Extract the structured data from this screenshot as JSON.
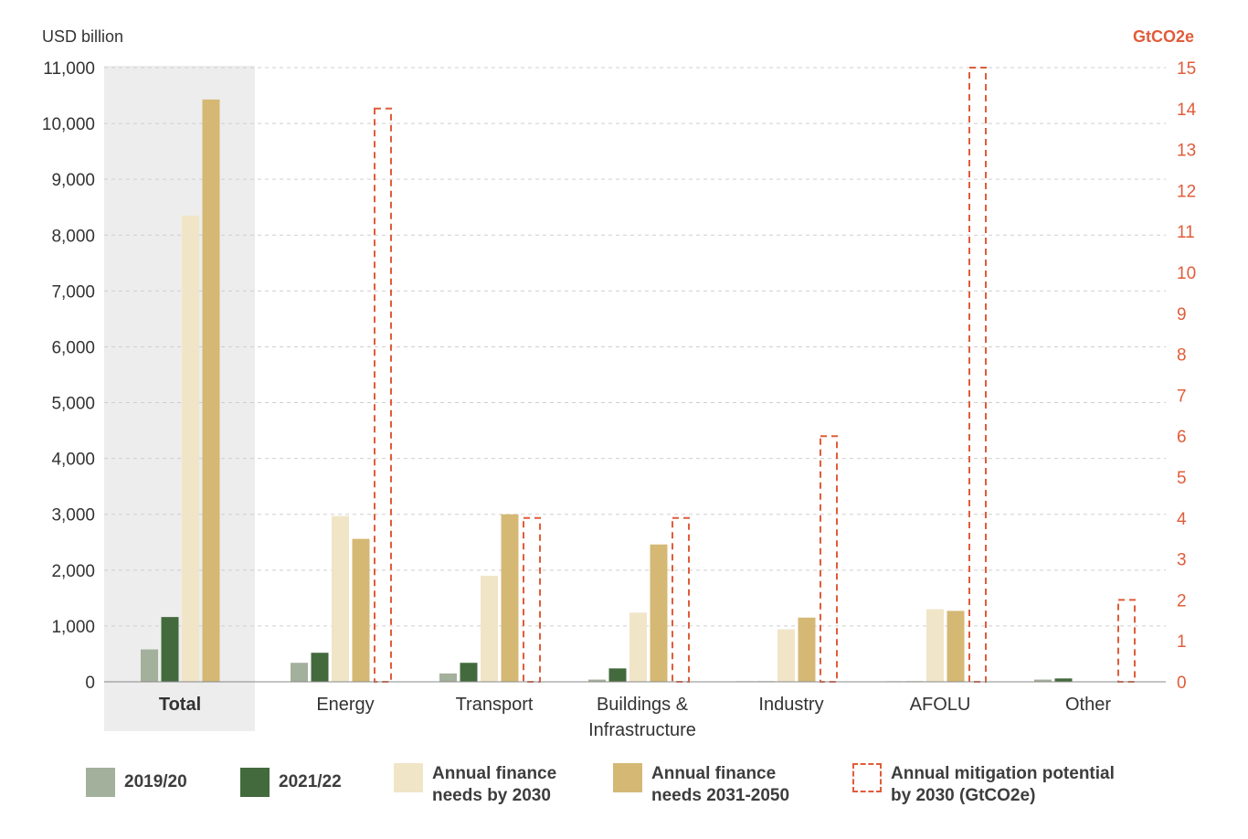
{
  "chart_data": {
    "type": "bar",
    "y_axis_left": {
      "label": "USD billion",
      "range": [
        0,
        11000
      ],
      "ticks": [
        "0",
        "1,000",
        "2,000",
        "3,000",
        "4,000",
        "5,000",
        "6,000",
        "7,000",
        "8,000",
        "9,000",
        "10,000",
        "11,000"
      ]
    },
    "y_axis_right": {
      "label": "GtCO2e",
      "range": [
        0,
        15
      ],
      "ticks": [
        "0",
        "1",
        "2",
        "3",
        "4",
        "5",
        "6",
        "7",
        "8",
        "9",
        "10",
        "11",
        "12",
        "13",
        "14",
        "15"
      ]
    },
    "grid": "horizontal-dashed",
    "categories": [
      "Total",
      "Energy",
      "Transport",
      "Buildings &\nInfrastructure",
      "Industry",
      "AFOLU",
      "Other"
    ],
    "highlighted_category": "Total",
    "series": [
      {
        "name": "2019/20",
        "axis": "left",
        "values": [
          580,
          340,
          150,
          40,
          10,
          10,
          40
        ]
      },
      {
        "name": "2021/22",
        "axis": "left",
        "values": [
          1160,
          520,
          340,
          240,
          10,
          10,
          60
        ]
      },
      {
        "name": "Annual finance needs by 2030",
        "axis": "left",
        "values": [
          8350,
          2970,
          1900,
          1240,
          940,
          1300,
          0
        ]
      },
      {
        "name": "Annual finance needs 2031-2050",
        "axis": "left",
        "values": [
          10430,
          2560,
          3000,
          2460,
          1150,
          1270,
          0
        ]
      },
      {
        "name": "Annual mitigation potential by 2030 (GtCO2e)",
        "axis": "right",
        "style": "dashed-outline",
        "values": [
          null,
          14,
          4,
          4,
          6,
          15,
          2
        ]
      }
    ],
    "legend_position": "bottom"
  },
  "legend": [
    {
      "label": "2019/20",
      "color": "#a3b09b",
      "style": "solid"
    },
    {
      "label": "2021/22",
      "color": "#436a3d",
      "style": "solid"
    },
    {
      "label": "Annual finance\nneeds by 2030",
      "color": "#f1e5c8",
      "style": "solid"
    },
    {
      "label": "Annual finance\nneeds 2031-2050",
      "color": "#d4b874",
      "style": "solid"
    },
    {
      "label": "Annual mitigation potential\nby 2030 (GtCO2e)",
      "color": "#e05c3a",
      "style": "dashed"
    }
  ],
  "colors": {
    "series": [
      "#a3b09b",
      "#436a3d",
      "#f1e5c8",
      "#d4b874",
      "#e05c3a"
    ],
    "right_axis": "#e05c3a",
    "highlight_bg": "#ededed",
    "grid": "#cfcfcf"
  }
}
